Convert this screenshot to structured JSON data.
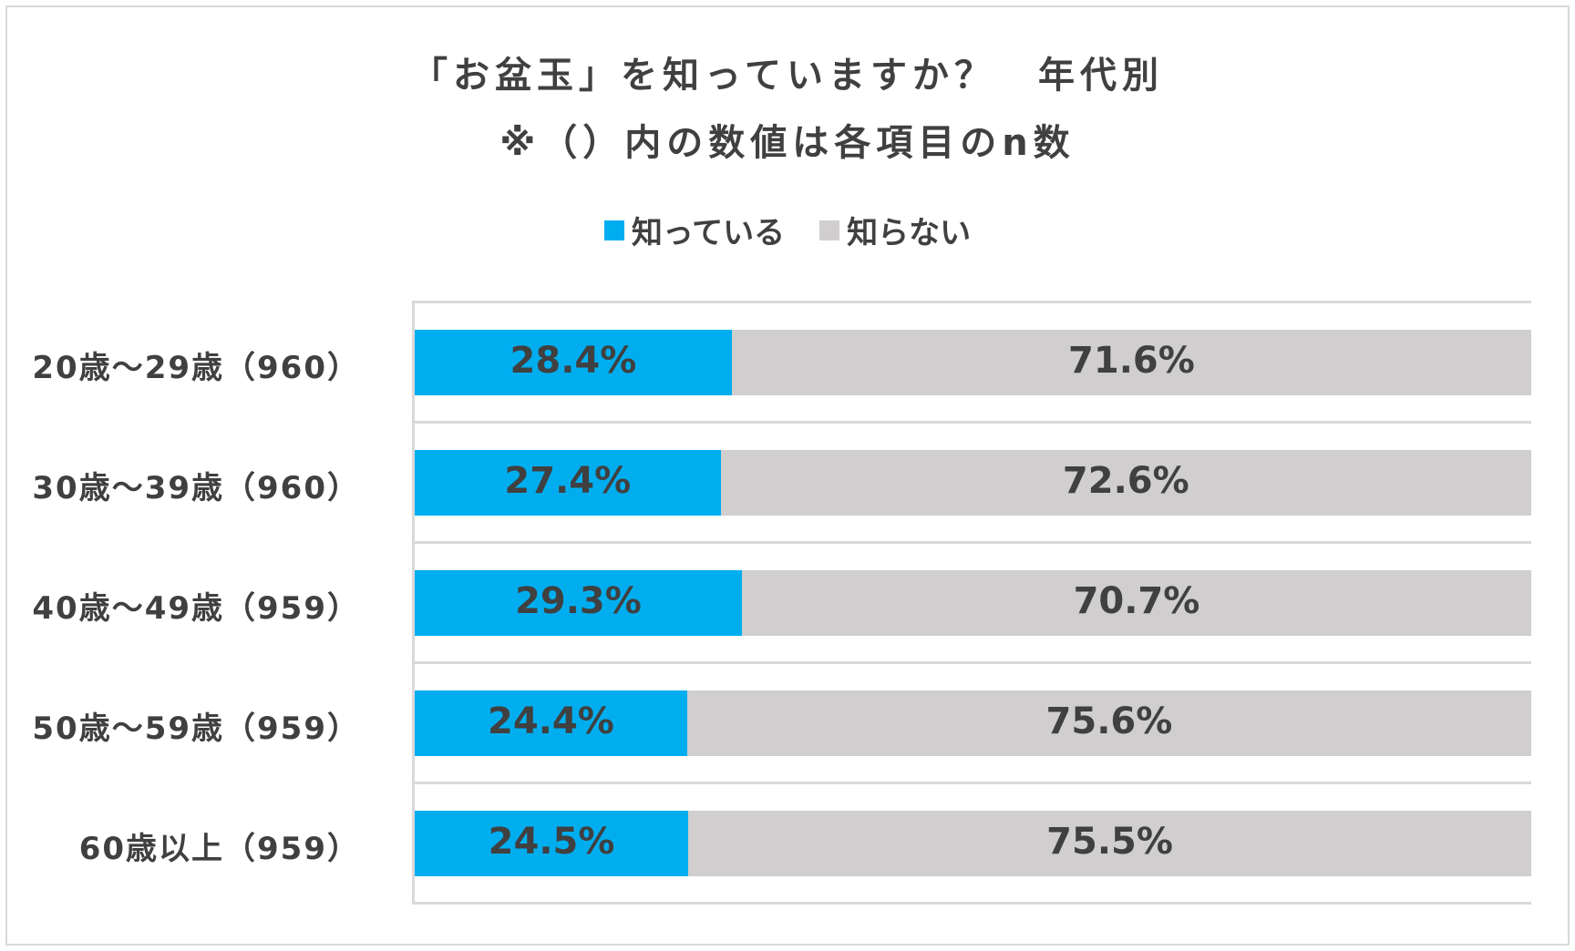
{
  "chart_data": {
    "type": "bar",
    "orientation": "horizontal",
    "stacked": true,
    "title": "「お盆玉」を知っていますか？　年代別",
    "subtitle": "※（）内の数値は各項目のn数",
    "legend_position": "top",
    "xlim": [
      0,
      100
    ],
    "categories": [
      "20歳～29歳（960）",
      "30歳～39歳（960）",
      "40歳～49歳（959）",
      "50歳～59歳（959）",
      "60歳以上（959）"
    ],
    "series": [
      {
        "name": "知っている",
        "color": "#00AEEF",
        "values": [
          28.4,
          27.4,
          29.3,
          24.4,
          24.5
        ],
        "labels": [
          "28.4%",
          "27.4%",
          "29.3%",
          "24.4%",
          "24.5%"
        ]
      },
      {
        "name": "知らない",
        "color": "#D0CECE",
        "values": [
          71.6,
          72.6,
          70.7,
          75.6,
          75.5
        ],
        "labels": [
          "71.6%",
          "72.6%",
          "70.7%",
          "75.6%",
          "75.5%"
        ]
      }
    ]
  }
}
